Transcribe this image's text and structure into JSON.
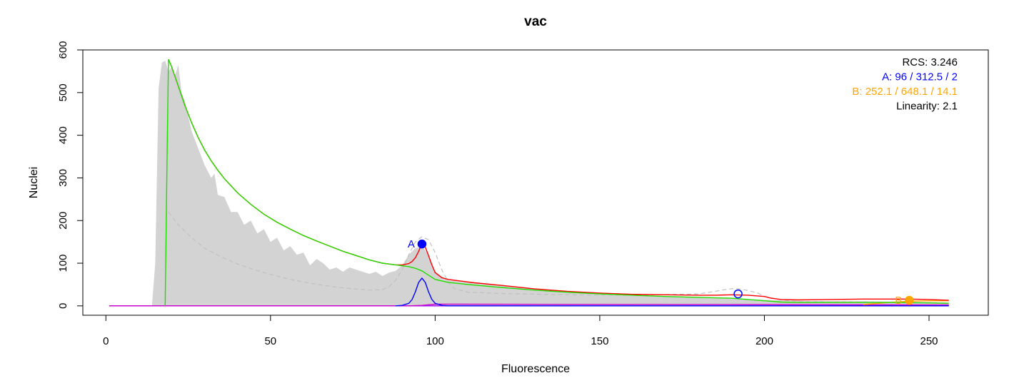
{
  "chart_data": {
    "type": "area",
    "title": "vac",
    "xlabel": "Fluorescence",
    "ylabel": "Nuclei",
    "xlim": [
      -7,
      268
    ],
    "ylim": [
      -22,
      600
    ],
    "x_ticks": [
      0,
      50,
      100,
      150,
      200,
      250
    ],
    "y_ticks": [
      0,
      100,
      200,
      300,
      400,
      500,
      600
    ],
    "grid": false,
    "legend_position": "top-right",
    "legend": [
      {
        "label": "RCS:",
        "value": "3.246",
        "color": "#000000"
      },
      {
        "label": "A:",
        "value": "96 / 312.5 / 2",
        "color": "#0000ff"
      },
      {
        "label": "B:",
        "value": "252.1 / 648.1 / 14.1",
        "color": "#ffa500"
      },
      {
        "label": "Linearity:",
        "value": "2.1",
        "color": "#000000"
      }
    ],
    "peaks": [
      {
        "label": "A",
        "x": 96,
        "y": 145,
        "color": "#0000ff",
        "filled": true
      },
      {
        "label": "",
        "x": 192,
        "y": 28,
        "color": "#0000ff",
        "filled": false
      },
      {
        "label": "B",
        "x": 244,
        "y": 13,
        "color": "#ffa500",
        "filled": true
      }
    ],
    "series": [
      {
        "role": "histogram",
        "color": "#d3d3d3",
        "x": [
          1,
          14,
          15,
          16,
          17,
          18,
          19,
          20,
          21,
          22,
          23,
          24,
          26,
          28,
          30,
          32,
          33,
          34,
          36,
          38,
          40,
          42,
          44,
          46,
          48,
          50,
          52,
          54,
          56,
          58,
          60,
          62,
          64,
          66,
          68,
          70,
          72,
          74,
          76,
          78,
          80,
          82,
          84,
          86,
          88,
          90,
          92,
          94,
          96,
          98,
          100,
          104,
          110,
          120,
          130,
          140,
          150,
          160,
          170,
          180,
          190,
          200,
          210,
          220,
          230,
          240,
          250,
          256
        ],
        "values": [
          0,
          0,
          100,
          510,
          570,
          575,
          550,
          560,
          540,
          565,
          500,
          480,
          410,
          370,
          330,
          300,
          310,
          260,
          255,
          220,
          220,
          190,
          200,
          170,
          180,
          150,
          160,
          130,
          140,
          120,
          125,
          95,
          110,
          100,
          85,
          90,
          80,
          90,
          85,
          80,
          75,
          80,
          70,
          78,
          82,
          95,
          120,
          135,
          140,
          120,
          80,
          60,
          55,
          48,
          40,
          33,
          28,
          25,
          22,
          20,
          18,
          14,
          12,
          11,
          11,
          10,
          9,
          8
        ]
      },
      {
        "role": "model",
        "color": "#ff0000",
        "x": [
          19,
          20,
          22,
          24,
          26,
          28,
          30,
          32,
          34,
          36,
          40,
          44,
          48,
          52,
          56,
          60,
          64,
          68,
          72,
          76,
          80,
          84,
          86,
          88,
          90,
          92,
          93,
          94,
          95,
          96,
          97,
          98,
          99,
          100,
          102,
          104,
          108,
          112,
          120,
          130,
          140,
          150,
          160,
          170,
          180,
          185,
          190,
          195,
          200,
          202,
          205,
          210,
          220,
          230,
          240,
          244,
          250,
          256
        ],
        "values": [
          578,
          560,
          515,
          470,
          430,
          395,
          365,
          340,
          318,
          298,
          265,
          238,
          215,
          196,
          180,
          165,
          152,
          140,
          128,
          118,
          108,
          100,
          98,
          96,
          96,
          99,
          104,
          113,
          128,
          146,
          138,
          118,
          96,
          78,
          66,
          62,
          58,
          54,
          48,
          40,
          34,
          30,
          27,
          26,
          25,
          25,
          26,
          25,
          22,
          18,
          15,
          14,
          15,
          16,
          16,
          16,
          15,
          13
        ]
      },
      {
        "role": "fit",
        "color": "#22dd00",
        "x": [
          18,
          18.5,
          19,
          20,
          22,
          24,
          26,
          28,
          30,
          32,
          34,
          36,
          40,
          44,
          48,
          52,
          56,
          60,
          64,
          68,
          72,
          76,
          80,
          84,
          88,
          92,
          94,
          96,
          98,
          100,
          104,
          110,
          120,
          130,
          140,
          150,
          160,
          170,
          180,
          190,
          195,
          200,
          205,
          210,
          220,
          230,
          240,
          250,
          256
        ],
        "values": [
          0,
          300,
          578,
          560,
          515,
          470,
          430,
          395,
          365,
          340,
          318,
          298,
          265,
          238,
          215,
          196,
          180,
          165,
          152,
          140,
          128,
          118,
          108,
          100,
          96,
          92,
          88,
          82,
          72,
          62,
          55,
          50,
          43,
          37,
          32,
          28,
          25,
          22,
          20,
          18,
          15,
          12,
          9,
          8,
          8,
          8,
          8,
          7,
          6
        ]
      },
      {
        "role": "peak-A",
        "color": "#0000ff",
        "x": [
          88,
          90,
          92,
          93,
          94,
          95,
          96,
          97,
          98,
          99,
          100,
          102,
          104,
          256
        ],
        "values": [
          0,
          1,
          6,
          15,
          33,
          55,
          65,
          55,
          33,
          15,
          6,
          1,
          0,
          0
        ]
      },
      {
        "role": "debris",
        "color": "#cc00cc",
        "x": [
          1,
          92,
          96,
          100,
          104,
          200,
          256
        ],
        "values": [
          0,
          0,
          1,
          4,
          4,
          3,
          2
        ]
      },
      {
        "role": "aggregates",
        "color": "#9900ff",
        "x": [
          1,
          256
        ],
        "values": [
          0,
          0
        ]
      },
      {
        "role": "peak-B",
        "color": "#ffa500",
        "x": [
          230,
          238,
          244,
          250,
          256
        ],
        "values": [
          3,
          8,
          11,
          12,
          12
        ]
      },
      {
        "role": "dashed",
        "color": "#c0c0c0",
        "x": [
          19,
          22,
          26,
          30,
          35,
          40,
          45,
          50,
          55,
          60,
          65,
          70,
          75,
          80,
          84,
          86,
          88,
          90,
          92,
          94,
          96,
          98,
          100,
          102,
          104,
          106,
          110,
          120,
          140,
          160,
          180,
          185,
          188,
          190,
          192,
          195,
          198,
          200,
          205,
          210,
          230,
          256
        ],
        "values": [
          220,
          190,
          160,
          135,
          115,
          98,
          85,
          74,
          64,
          56,
          49,
          44,
          40,
          37,
          38,
          45,
          60,
          85,
          120,
          150,
          162,
          155,
          125,
          85,
          55,
          40,
          32,
          29,
          26,
          25,
          28,
          34,
          38,
          40,
          40,
          36,
          30,
          22,
          15,
          10,
          9,
          7
        ]
      }
    ]
  }
}
